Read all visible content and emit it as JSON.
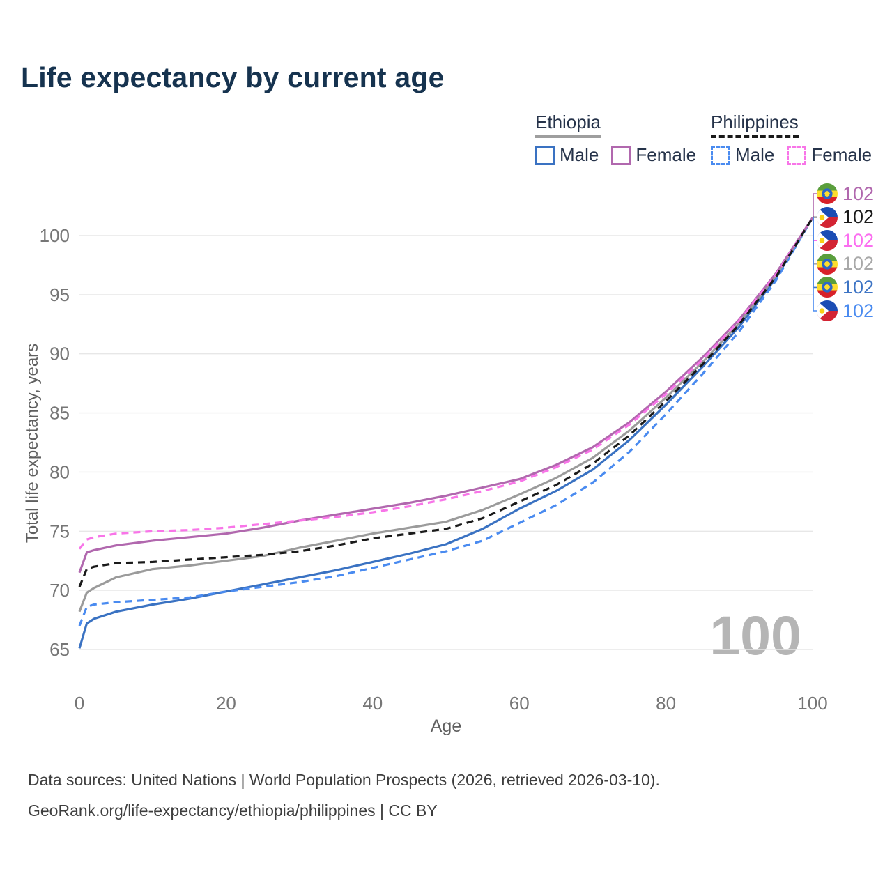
{
  "title": "Life expectancy by current age",
  "legend": {
    "groups": [
      {
        "country": "Ethiopia",
        "line_style": "solid",
        "underline_color": "#9e9e9e",
        "items": [
          {
            "label": "Male",
            "series_id": "eth_m"
          },
          {
            "label": "Female",
            "series_id": "eth_f"
          }
        ]
      },
      {
        "country": "Philippines",
        "line_style": "dashed",
        "underline_color": "#1a1a1a",
        "items": [
          {
            "label": "Male",
            "series_id": "phl_m"
          },
          {
            "label": "Female",
            "series_id": "phl_f"
          }
        ]
      }
    ]
  },
  "chart_data": {
    "type": "line",
    "xlabel": "Age",
    "ylabel": "Total life expectancy, years",
    "x_ticks": [
      0,
      20,
      40,
      60,
      80,
      100
    ],
    "y_ticks": [
      65,
      70,
      75,
      80,
      85,
      90,
      95,
      100
    ],
    "xlim": [
      0,
      100
    ],
    "ylim": [
      65,
      102
    ],
    "grid": "horizontal-only",
    "ages": [
      0,
      1,
      2,
      5,
      10,
      15,
      20,
      25,
      30,
      35,
      40,
      45,
      50,
      55,
      60,
      65,
      70,
      75,
      80,
      85,
      90,
      95,
      100
    ],
    "series": [
      {
        "id": "eth_m",
        "name": "Ethiopia Male",
        "country": "Ethiopia",
        "flag": "ethiopia",
        "color": "#3a72c2",
        "dashed": false,
        "label_row": 4,
        "label_color": "#3d74c4",
        "end_label": "102",
        "values": [
          65.1,
          67.2,
          67.6,
          68.2,
          68.8,
          69.3,
          69.9,
          70.5,
          71.1,
          71.7,
          72.4,
          73.1,
          73.9,
          75.2,
          76.9,
          78.4,
          80.2,
          82.7,
          85.7,
          88.9,
          92.3,
          96.4,
          101.5
        ]
      },
      {
        "id": "eth_b",
        "name": "Ethiopia (both sexes)",
        "country": "Ethiopia",
        "flag": "ethiopia",
        "color": "#9b9b9b",
        "dashed": false,
        "label_row": 3,
        "label_color": "#a9a9a9",
        "end_label": "102",
        "values": [
          68.2,
          69.8,
          70.2,
          71.1,
          71.8,
          72.1,
          72.5,
          72.9,
          73.6,
          74.2,
          74.8,
          75.3,
          75.8,
          76.8,
          78.1,
          79.5,
          81.2,
          83.5,
          86.3,
          89.3,
          92.6,
          96.6,
          101.5
        ]
      },
      {
        "id": "eth_f",
        "name": "Ethiopia Female",
        "country": "Ethiopia",
        "flag": "ethiopia",
        "color": "#b168ae",
        "dashed": false,
        "label_row": 0,
        "label_color": "#b168ae",
        "end_label": "102",
        "values": [
          71.5,
          73.2,
          73.4,
          73.8,
          74.2,
          74.5,
          74.8,
          75.3,
          75.9,
          76.4,
          76.9,
          77.4,
          78.0,
          78.7,
          79.4,
          80.6,
          82.1,
          84.2,
          86.8,
          89.7,
          92.9,
          96.8,
          101.5
        ]
      },
      {
        "id": "phl_m",
        "name": "Philippines Male",
        "country": "Philippines",
        "flag": "philippines",
        "color": "#4a8bf0",
        "dashed": true,
        "label_row": 5,
        "label_color": "#4a8bf0",
        "end_label": "102",
        "values": [
          67.0,
          68.6,
          68.8,
          69.0,
          69.2,
          69.4,
          69.9,
          70.3,
          70.7,
          71.2,
          71.9,
          72.6,
          73.3,
          74.2,
          75.7,
          77.2,
          79.1,
          81.7,
          84.9,
          88.3,
          91.9,
          96.2,
          101.5
        ]
      },
      {
        "id": "phl_b",
        "name": "Philippines (both sexes)",
        "country": "Philippines",
        "flag": "philippines",
        "color": "#1a1a1a",
        "dashed": true,
        "label_row": 1,
        "label_color": "#1a1a1a",
        "end_label": "102",
        "values": [
          70.3,
          71.8,
          72.0,
          72.3,
          72.4,
          72.6,
          72.8,
          73.0,
          73.3,
          73.8,
          74.4,
          74.8,
          75.2,
          76.1,
          77.5,
          78.9,
          80.7,
          83.1,
          86.0,
          89.1,
          92.5,
          96.5,
          101.5
        ]
      },
      {
        "id": "phl_f",
        "name": "Philippines Female",
        "country": "Philippines",
        "flag": "philippines",
        "color": "#f875e8",
        "dashed": true,
        "label_row": 2,
        "label_color": "#fb6ff0",
        "end_label": "102",
        "values": [
          73.5,
          74.3,
          74.5,
          74.8,
          75.0,
          75.1,
          75.3,
          75.6,
          75.9,
          76.2,
          76.6,
          77.1,
          77.7,
          78.4,
          79.2,
          80.4,
          81.9,
          84.0,
          86.6,
          89.5,
          92.8,
          96.7,
          101.5
        ]
      }
    ],
    "legend_position": "top-right",
    "end_value_label": "102"
  },
  "watermark": "100",
  "footer": {
    "line1": "Data sources: United Nations | World Population Prospects (2026, retrieved 2026-03-10).",
    "line2": "GeoRank.org/life-expectancy/ethiopia/philippines | CC BY"
  },
  "colors": {
    "title": "#16334f",
    "legend_text": "#26334a",
    "tick_labels": "#767676",
    "axis_titles": "#5f5f5f",
    "gridline": "#e7e7e7",
    "watermark": "#b5b5b5",
    "footer_text": "#3e3e3e"
  }
}
